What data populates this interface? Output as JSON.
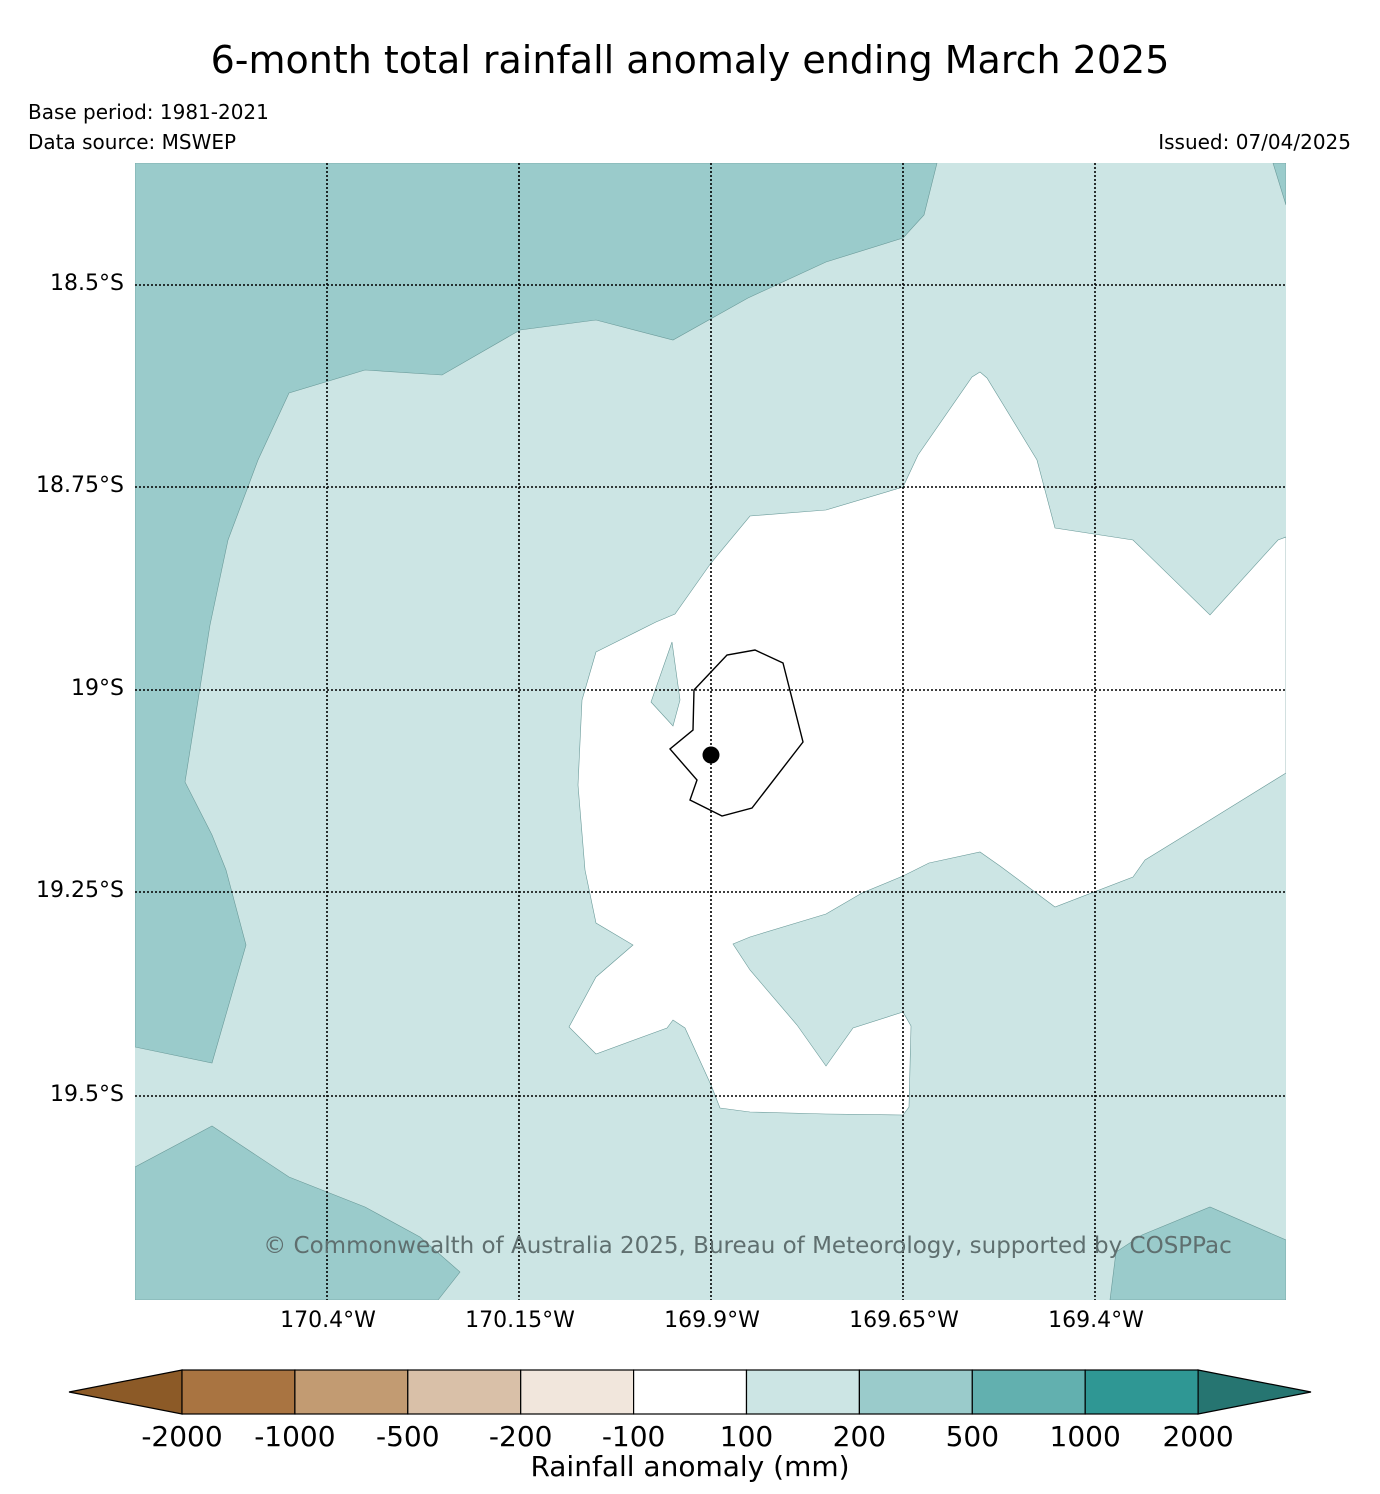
{
  "title": "6-month total rainfall anomaly ending March 2025",
  "base_period": "Base period: 1981-2021",
  "data_source": "Data source: MSWEP",
  "issued": "Issued: 07/04/2025",
  "copyright": "© Commonwealth of Australia 2025, Bureau of Meteorology, supported by COSPPac",
  "lat_labels": [
    "18.5°S",
    "18.75°S",
    "19°S",
    "19.25°S",
    "19.5°S"
  ],
  "lon_labels": [
    "170.4°W",
    "170.15°W",
    "169.9°W",
    "169.65°W",
    "169.4°W"
  ],
  "colorbar": {
    "title": "Rainfall anomaly (mm)",
    "ticks": [
      "-2000",
      "-1000",
      "-500",
      "-200",
      "-100",
      "100",
      "200",
      "500",
      "1000",
      "2000"
    ],
    "colors": [
      "#8c5a27",
      "#a97441",
      "#c29b72",
      "#d9c0a8",
      "#f1e6dc",
      "#ffffff",
      "#cce5e4",
      "#9acbcb",
      "#62b0af",
      "#2f9794",
      "#267571"
    ]
  },
  "legend_colors": {
    "class_100_200": "#cce5e4",
    "class_200_500": "#9acbcb",
    "class_neg100_100": "#ffffff"
  }
}
